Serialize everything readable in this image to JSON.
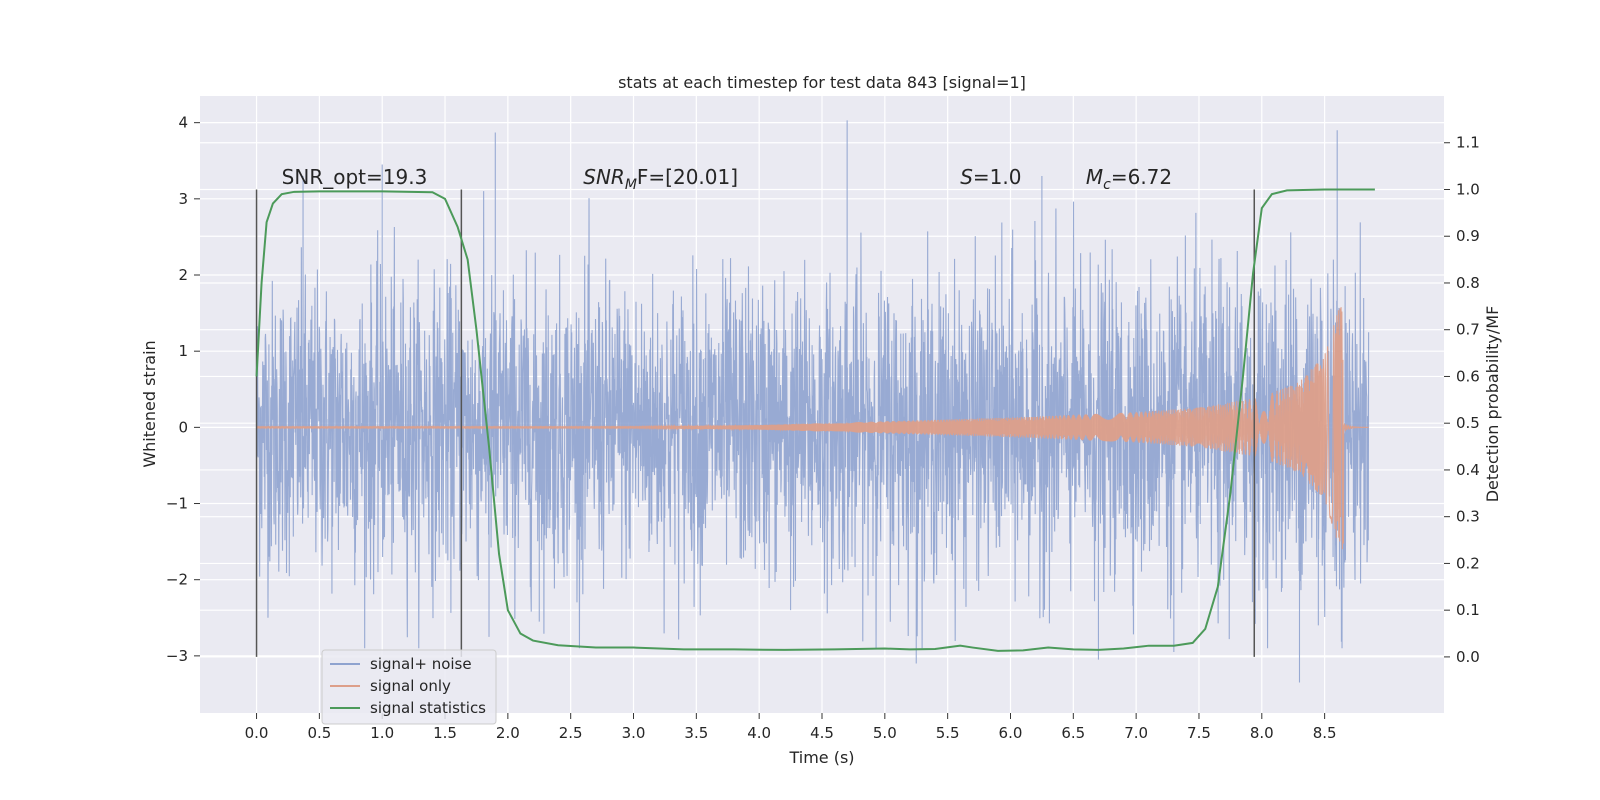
{
  "chart_data": {
    "type": "line",
    "title": "stats at each timestep for test data 843 [signal=1]",
    "xlabel": "Time (s)",
    "ylabel_left": "Whitened strain",
    "ylabel_right": "Detection probability/MF",
    "xlim": [
      -0.45,
      9.45
    ],
    "ylim_left": [
      -3.75,
      4.35
    ],
    "ylim_right": [
      -0.12,
      1.2
    ],
    "x_ticks": [
      0.0,
      0.5,
      1.0,
      1.5,
      2.0,
      2.5,
      3.0,
      3.5,
      4.0,
      4.5,
      5.0,
      5.5,
      6.0,
      6.5,
      7.0,
      7.5,
      8.0,
      8.5
    ],
    "x_tick_labels": [
      "0.0",
      "0.5",
      "1.0",
      "1.5",
      "2.0",
      "2.5",
      "3.0",
      "3.5",
      "4.0",
      "4.5",
      "5.0",
      "5.5",
      "6.0",
      "6.5",
      "7.0",
      "7.5",
      "8.0",
      "8.5"
    ],
    "y_ticks_left": [
      -3,
      -2,
      -1,
      0,
      1,
      2,
      3,
      4
    ],
    "y_tick_labels_left": [
      "−3",
      "−2",
      "−1",
      "0",
      "1",
      "2",
      "3",
      "4"
    ],
    "y_ticks_right": [
      0.0,
      0.1,
      0.2,
      0.3,
      0.4,
      0.5,
      0.6,
      0.7,
      0.8,
      0.9,
      1.0,
      1.1
    ],
    "y_tick_labels_right": [
      "0.0",
      "0.1",
      "0.2",
      "0.3",
      "0.4",
      "0.5",
      "0.6",
      "0.7",
      "0.8",
      "0.9",
      "1.0",
      "1.1"
    ],
    "grid": true,
    "legend_position": "bottom-left",
    "annotations": {
      "snr_opt": {
        "text": "SNR_opt=19.3",
        "x": 0.2
      },
      "snr_mf": {
        "prefix": "SNR",
        "sub": "M",
        "suffix": "F=[20.01]",
        "x": 2.6
      },
      "s": {
        "prefix": "S",
        "suffix": "=1.0",
        "x": 5.6
      },
      "mc": {
        "prefix": "M",
        "sub": "c",
        "suffix": "=6.72",
        "x": 6.6
      }
    },
    "vertical_markers": [
      0.0,
      1.63,
      7.94
    ],
    "series": [
      {
        "name": "signal+ noise",
        "color": "#8fa3cf",
        "x_range": [
          0.0,
          8.85
        ],
        "baseline_amplitude": 1.3,
        "peaks": [
          [
            0.37,
            3.3
          ],
          [
            1.0,
            3.45
          ],
          [
            1.9,
            3.87
          ],
          [
            4.7,
            4.03
          ],
          [
            6.25,
            3.3
          ],
          [
            8.6,
            3.9
          ],
          [
            2.25,
            -2.55
          ],
          [
            4.25,
            -2.4
          ],
          [
            5.25,
            -3.1
          ],
          [
            6.7,
            -3.05
          ],
          [
            8.3,
            -3.35
          ],
          [
            8.45,
            -2.6
          ],
          [
            1.85,
            -2.75
          ],
          [
            7.3,
            -2.95
          ]
        ]
      },
      {
        "name": "signal only",
        "color": "#dd9f8a",
        "t_coalescence": 8.65,
        "envelope": [
          [
            0.0,
            0.01
          ],
          [
            3.0,
            0.01
          ],
          [
            4.0,
            0.03
          ],
          [
            5.0,
            0.08
          ],
          [
            6.0,
            0.13
          ],
          [
            7.0,
            0.2
          ],
          [
            7.5,
            0.26
          ],
          [
            8.0,
            0.4
          ],
          [
            8.3,
            0.6
          ],
          [
            8.5,
            0.95
          ],
          [
            8.6,
            1.5
          ],
          [
            8.65,
            1.75
          ]
        ]
      },
      {
        "name": "signal statistics",
        "color": "#4c9a5a",
        "points": [
          [
            0.0,
            0.6
          ],
          [
            0.04,
            0.8
          ],
          [
            0.08,
            0.93
          ],
          [
            0.13,
            0.97
          ],
          [
            0.2,
            0.99
          ],
          [
            0.3,
            0.995
          ],
          [
            0.5,
            0.996
          ],
          [
            1.0,
            0.996
          ],
          [
            1.4,
            0.994
          ],
          [
            1.5,
            0.98
          ],
          [
            1.6,
            0.92
          ],
          [
            1.68,
            0.85
          ],
          [
            1.75,
            0.7
          ],
          [
            1.85,
            0.45
          ],
          [
            1.93,
            0.22
          ],
          [
            2.0,
            0.1
          ],
          [
            2.1,
            0.05
          ],
          [
            2.2,
            0.035
          ],
          [
            2.4,
            0.025
          ],
          [
            2.7,
            0.02
          ],
          [
            3.0,
            0.02
          ],
          [
            3.4,
            0.016
          ],
          [
            3.8,
            0.016
          ],
          [
            4.2,
            0.015
          ],
          [
            4.6,
            0.016
          ],
          [
            5.0,
            0.018
          ],
          [
            5.2,
            0.016
          ],
          [
            5.4,
            0.017
          ],
          [
            5.6,
            0.024
          ],
          [
            5.7,
            0.02
          ],
          [
            5.9,
            0.013
          ],
          [
            6.1,
            0.014
          ],
          [
            6.3,
            0.02
          ],
          [
            6.5,
            0.016
          ],
          [
            6.7,
            0.015
          ],
          [
            6.9,
            0.018
          ],
          [
            7.1,
            0.024
          ],
          [
            7.3,
            0.024
          ],
          [
            7.45,
            0.03
          ],
          [
            7.55,
            0.06
          ],
          [
            7.65,
            0.15
          ],
          [
            7.75,
            0.35
          ],
          [
            7.85,
            0.6
          ],
          [
            7.93,
            0.82
          ],
          [
            8.0,
            0.96
          ],
          [
            8.08,
            0.99
          ],
          [
            8.2,
            0.998
          ],
          [
            8.5,
            1.0
          ],
          [
            8.9,
            1.0
          ]
        ]
      }
    ]
  }
}
